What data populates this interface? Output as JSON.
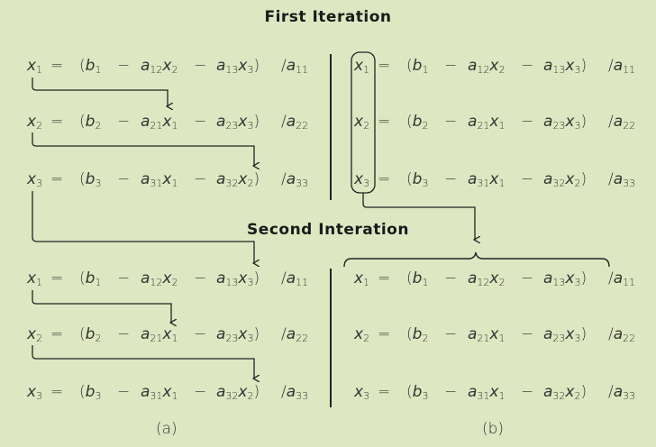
{
  "headings": {
    "first": "First Iteration",
    "second": "Second Interation"
  },
  "equations": [
    {
      "lhs": "x",
      "lhs_sub": "1",
      "b_sub": "1",
      "t1_coef_sub": "12",
      "t1_var": "x",
      "t1_var_sub": "2",
      "t2_coef_sub": "13",
      "t2_var": "x",
      "t2_var_sub": "3",
      "den_sub": "11"
    },
    {
      "lhs": "x",
      "lhs_sub": "2",
      "b_sub": "2",
      "t1_coef_sub": "21",
      "t1_var": "x",
      "t1_var_sub": "1",
      "t2_coef_sub": "23",
      "t2_var": "x",
      "t2_var_sub": "3",
      "den_sub": "22"
    },
    {
      "lhs": "x",
      "lhs_sub": "3",
      "b_sub": "3",
      "t1_coef_sub": "31",
      "t1_var": "x",
      "t1_var_sub": "1",
      "t2_coef_sub": "32",
      "t2_var": "x",
      "t2_var_sub": "2",
      "den_sub": "33"
    }
  ],
  "symbols": {
    "equals": "=",
    "minus": "−",
    "open": "(",
    "close": ")",
    "slash": "/",
    "b": "b",
    "a": "a"
  },
  "captions": {
    "a": "(a)",
    "b": "(b)"
  }
}
